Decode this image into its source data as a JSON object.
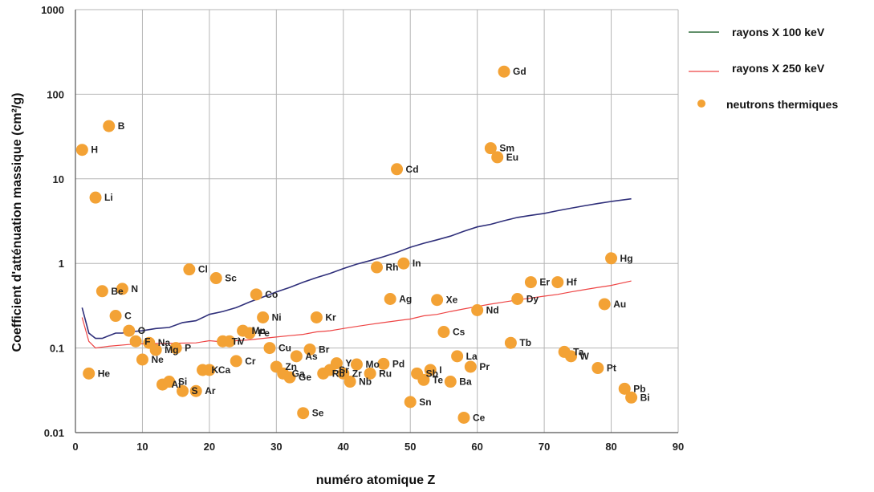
{
  "chart_data": {
    "type": "scatter",
    "title": "",
    "xlabel": "numéro atomique Z",
    "ylabel": "Coefficient d'atténuation massique (cm²/g)",
    "xlim": [
      0,
      90
    ],
    "ylim": [
      0.01,
      1000
    ],
    "yscale": "log",
    "grid": true,
    "legend_position": "right",
    "x_ticks": [
      "0",
      "10",
      "20",
      "30",
      "40",
      "50",
      "60",
      "70",
      "80",
      "90"
    ],
    "y_ticks": [
      "0.01",
      "0.1",
      "1",
      "10",
      "100",
      "1000"
    ],
    "series": [
      {
        "name": "rayons X 100 keV",
        "kind": "line",
        "color": "#2f2f7a",
        "legend_color": "#2e6b3a",
        "points": [
          [
            1,
            0.3
          ],
          [
            2,
            0.15
          ],
          [
            3,
            0.13
          ],
          [
            4,
            0.13
          ],
          [
            5,
            0.14
          ],
          [
            6,
            0.15
          ],
          [
            7,
            0.15
          ],
          [
            8,
            0.155
          ],
          [
            10,
            0.16
          ],
          [
            12,
            0.17
          ],
          [
            14,
            0.175
          ],
          [
            16,
            0.2
          ],
          [
            18,
            0.21
          ],
          [
            20,
            0.25
          ],
          [
            22,
            0.27
          ],
          [
            24,
            0.3
          ],
          [
            26,
            0.35
          ],
          [
            28,
            0.4
          ],
          [
            30,
            0.46
          ],
          [
            32,
            0.52
          ],
          [
            34,
            0.6
          ],
          [
            36,
            0.68
          ],
          [
            38,
            0.76
          ],
          [
            40,
            0.87
          ],
          [
            42,
            0.98
          ],
          [
            44,
            1.08
          ],
          [
            46,
            1.2
          ],
          [
            48,
            1.35
          ],
          [
            50,
            1.55
          ],
          [
            52,
            1.73
          ],
          [
            54,
            1.9
          ],
          [
            56,
            2.1
          ],
          [
            58,
            2.4
          ],
          [
            60,
            2.7
          ],
          [
            62,
            2.9
          ],
          [
            64,
            3.2
          ],
          [
            66,
            3.5
          ],
          [
            68,
            3.7
          ],
          [
            70,
            3.9
          ],
          [
            72,
            4.2
          ],
          [
            74,
            4.5
          ],
          [
            76,
            4.8
          ],
          [
            78,
            5.1
          ],
          [
            80,
            5.4
          ],
          [
            83,
            5.8
          ]
        ]
      },
      {
        "name": "rayons X 250 keV",
        "kind": "line",
        "color": "#ee4444",
        "legend_color": "#ee4444",
        "points": [
          [
            1,
            0.23
          ],
          [
            2,
            0.12
          ],
          [
            3,
            0.1
          ],
          [
            5,
            0.105
          ],
          [
            8,
            0.11
          ],
          [
            10,
            0.112
          ],
          [
            12,
            0.113
          ],
          [
            15,
            0.114
          ],
          [
            18,
            0.115
          ],
          [
            20,
            0.122
          ],
          [
            22,
            0.118
          ],
          [
            24,
            0.122
          ],
          [
            26,
            0.125
          ],
          [
            28,
            0.13
          ],
          [
            30,
            0.135
          ],
          [
            32,
            0.14
          ],
          [
            34,
            0.145
          ],
          [
            36,
            0.155
          ],
          [
            38,
            0.16
          ],
          [
            40,
            0.17
          ],
          [
            42,
            0.18
          ],
          [
            44,
            0.19
          ],
          [
            46,
            0.2
          ],
          [
            48,
            0.21
          ],
          [
            50,
            0.22
          ],
          [
            52,
            0.24
          ],
          [
            54,
            0.25
          ],
          [
            56,
            0.27
          ],
          [
            58,
            0.29
          ],
          [
            60,
            0.31
          ],
          [
            62,
            0.33
          ],
          [
            64,
            0.35
          ],
          [
            66,
            0.37
          ],
          [
            68,
            0.39
          ],
          [
            70,
            0.41
          ],
          [
            72,
            0.43
          ],
          [
            74,
            0.46
          ],
          [
            76,
            0.49
          ],
          [
            78,
            0.52
          ],
          [
            80,
            0.55
          ],
          [
            83,
            0.62
          ]
        ]
      },
      {
        "name": "neutrons thermiques",
        "kind": "scatter",
        "color": "#f3a235",
        "points": [
          {
            "z": 1,
            "v": 22,
            "label": "H"
          },
          {
            "z": 2,
            "v": 0.05,
            "label": "He"
          },
          {
            "z": 3,
            "v": 6.0,
            "label": "Li"
          },
          {
            "z": 4,
            "v": 0.47,
            "label": "Be"
          },
          {
            "z": 5,
            "v": 42,
            "label": "B"
          },
          {
            "z": 6,
            "v": 0.24,
            "label": "C"
          },
          {
            "z": 7,
            "v": 0.5,
            "label": "N"
          },
          {
            "z": 8,
            "v": 0.16,
            "label": "O"
          },
          {
            "z": 9,
            "v": 0.12,
            "label": "F"
          },
          {
            "z": 10,
            "v": 0.073,
            "label": "Ne"
          },
          {
            "z": 11,
            "v": 0.115,
            "label": "Na"
          },
          {
            "z": 12,
            "v": 0.095,
            "label": "Mg"
          },
          {
            "z": 13,
            "v": 0.037,
            "label": "Al"
          },
          {
            "z": 14,
            "v": 0.04,
            "label": "Si"
          },
          {
            "z": 15,
            "v": 0.1,
            "label": "P"
          },
          {
            "z": 16,
            "v": 0.031,
            "label": "S"
          },
          {
            "z": 17,
            "v": 0.85,
            "label": "Cl"
          },
          {
            "z": 18,
            "v": 0.031,
            "label": "Ar"
          },
          {
            "z": 19,
            "v": 0.055,
            "label": "K"
          },
          {
            "z": 20,
            "v": 0.055,
            "label": "Ca"
          },
          {
            "z": 21,
            "v": 0.67,
            "label": "Sc"
          },
          {
            "z": 22,
            "v": 0.12,
            "label": "Ti"
          },
          {
            "z": 23,
            "v": 0.12,
            "label": "V"
          },
          {
            "z": 24,
            "v": 0.07,
            "label": "Cr"
          },
          {
            "z": 25,
            "v": 0.16,
            "label": "Mn"
          },
          {
            "z": 26,
            "v": 0.15,
            "label": "Fe"
          },
          {
            "z": 27,
            "v": 0.43,
            "label": "Co"
          },
          {
            "z": 28,
            "v": 0.23,
            "label": "Ni"
          },
          {
            "z": 29,
            "v": 0.1,
            "label": "Cu"
          },
          {
            "z": 30,
            "v": 0.06,
            "label": "Zn"
          },
          {
            "z": 31,
            "v": 0.05,
            "label": "Ga"
          },
          {
            "z": 32,
            "v": 0.045,
            "label": "Ge"
          },
          {
            "z": 33,
            "v": 0.08,
            "label": "As"
          },
          {
            "z": 34,
            "v": 0.017,
            "label": "Se"
          },
          {
            "z": 35,
            "v": 0.096,
            "label": "Br"
          },
          {
            "z": 36,
            "v": 0.23,
            "label": "Kr"
          },
          {
            "z": 37,
            "v": 0.05,
            "label": "Rb"
          },
          {
            "z": 38,
            "v": 0.055,
            "label": "Sr"
          },
          {
            "z": 39,
            "v": 0.066,
            "label": "Y"
          },
          {
            "z": 40,
            "v": 0.05,
            "label": "Zr"
          },
          {
            "z": 41,
            "v": 0.04,
            "label": "Nb"
          },
          {
            "z": 42,
            "v": 0.064,
            "label": "Mo"
          },
          {
            "z": 44,
            "v": 0.05,
            "label": "Ru"
          },
          {
            "z": 45,
            "v": 0.9,
            "label": "Rh"
          },
          {
            "z": 46,
            "v": 0.065,
            "label": "Pd"
          },
          {
            "z": 47,
            "v": 0.38,
            "label": "Ag"
          },
          {
            "z": 48,
            "v": 13,
            "label": "Cd"
          },
          {
            "z": 49,
            "v": 1.0,
            "label": "In"
          },
          {
            "z": 50,
            "v": 0.023,
            "label": "Sn"
          },
          {
            "z": 51,
            "v": 0.05,
            "label": "Sb"
          },
          {
            "z": 52,
            "v": 0.042,
            "label": "Te"
          },
          {
            "z": 53,
            "v": 0.055,
            "label": "I"
          },
          {
            "z": 54,
            "v": 0.37,
            "label": "Xe"
          },
          {
            "z": 55,
            "v": 0.155,
            "label": "Cs"
          },
          {
            "z": 56,
            "v": 0.04,
            "label": "Ba"
          },
          {
            "z": 57,
            "v": 0.08,
            "label": "La"
          },
          {
            "z": 58,
            "v": 0.015,
            "label": "Ce"
          },
          {
            "z": 59,
            "v": 0.06,
            "label": "Pr"
          },
          {
            "z": 60,
            "v": 0.28,
            "label": "Nd"
          },
          {
            "z": 62,
            "v": 23,
            "label": "Sm"
          },
          {
            "z": 63,
            "v": 18,
            "label": "Eu"
          },
          {
            "z": 64,
            "v": 185,
            "label": "Gd"
          },
          {
            "z": 65,
            "v": 0.115,
            "label": "Tb"
          },
          {
            "z": 66,
            "v": 0.38,
            "label": "Dy"
          },
          {
            "z": 68,
            "v": 0.6,
            "label": "Er"
          },
          {
            "z": 72,
            "v": 0.6,
            "label": "Hf"
          },
          {
            "z": 73,
            "v": 0.09,
            "label": "Ta"
          },
          {
            "z": 74,
            "v": 0.08,
            "label": "W"
          },
          {
            "z": 78,
            "v": 0.058,
            "label": "Pt"
          },
          {
            "z": 79,
            "v": 0.33,
            "label": "Au"
          },
          {
            "z": 80,
            "v": 1.15,
            "label": "Hg"
          },
          {
            "z": 82,
            "v": 0.033,
            "label": "Pb"
          },
          {
            "z": 83,
            "v": 0.026,
            "label": "Bi"
          }
        ]
      }
    ]
  }
}
